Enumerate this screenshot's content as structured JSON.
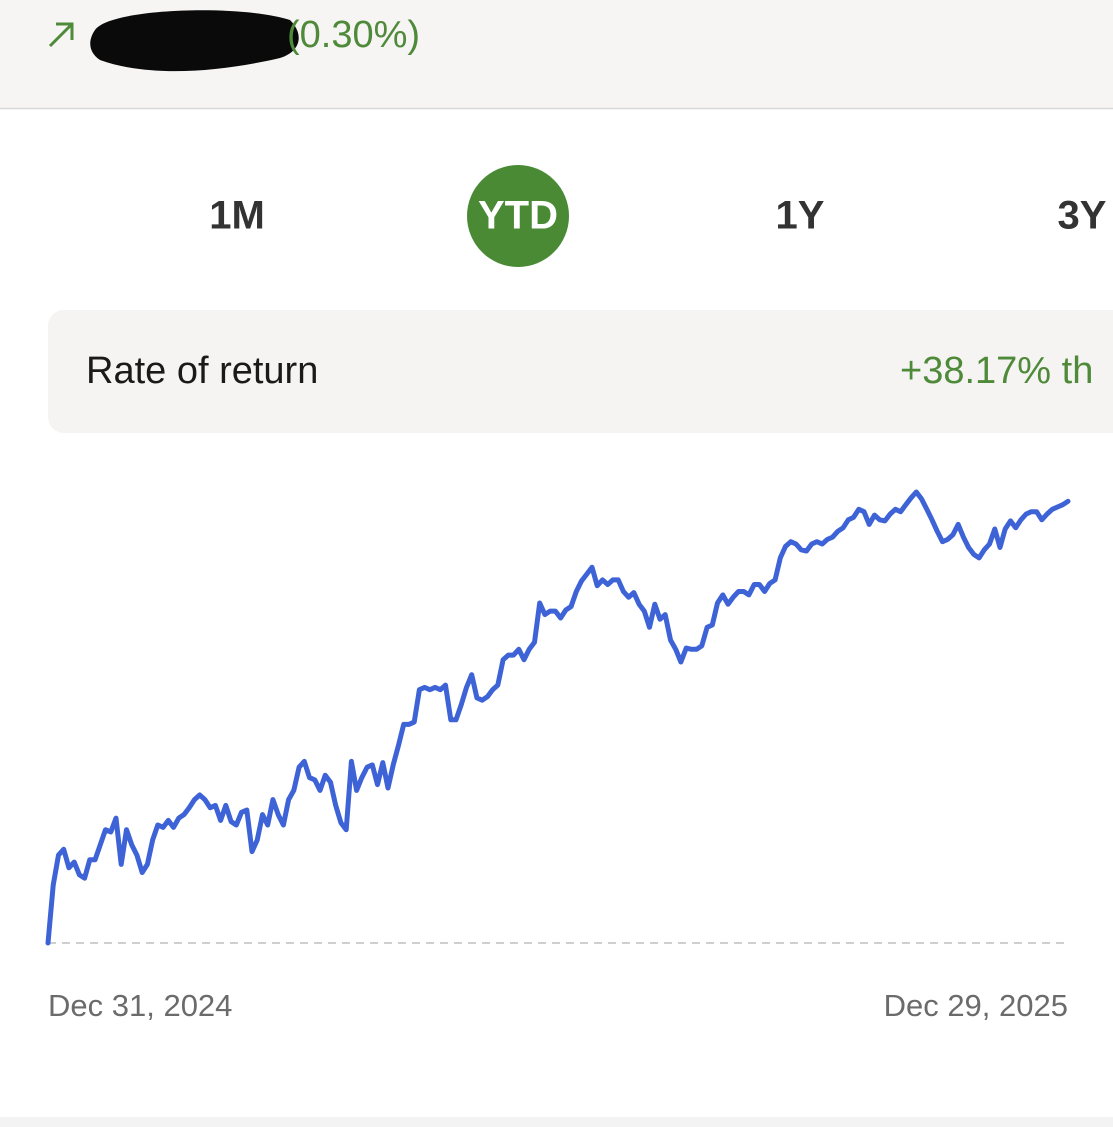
{
  "header": {
    "change_percent": "(0.30%)"
  },
  "tabs": [
    "1M",
    "YTD",
    "1Y",
    "3Y"
  ],
  "selected_tab": "YTD",
  "rate_of_return": {
    "label": "Rate of return",
    "value": "+38.17% th"
  },
  "chart_data": {
    "type": "line",
    "categories": [
      "Dec 31, 2024",
      null,
      null,
      null,
      null,
      null,
      null,
      null,
      null,
      null,
      null,
      null,
      null,
      null,
      null,
      null,
      null,
      null,
      null,
      null,
      null,
      null,
      null,
      null,
      null,
      null,
      null,
      null,
      null,
      null,
      null,
      null,
      null,
      null,
      null,
      null,
      null,
      null,
      null,
      null,
      null,
      null,
      null,
      null,
      null,
      null,
      null,
      null,
      null,
      null,
      null,
      null,
      null,
      null,
      null,
      null,
      null,
      null,
      null,
      null,
      null,
      null,
      null,
      null,
      null,
      null,
      null,
      null,
      null,
      null,
      null,
      null,
      null,
      null,
      null,
      null,
      null,
      null,
      null,
      null,
      null,
      null,
      null,
      null,
      null,
      null,
      null,
      null,
      null,
      null,
      null,
      null,
      null,
      null,
      null,
      null,
      null,
      null,
      null,
      null,
      null,
      null,
      null,
      null,
      null,
      null,
      null,
      null,
      null,
      null,
      null,
      null,
      null,
      null,
      null,
      null,
      null,
      null,
      null,
      null,
      null,
      null,
      null,
      null,
      null,
      null,
      null,
      null,
      null,
      null,
      null,
      null,
      null,
      null,
      null,
      null,
      null,
      null,
      null,
      null,
      null,
      null,
      null,
      null,
      null,
      null,
      null,
      null,
      null,
      null,
      null,
      null,
      null,
      null,
      null,
      null,
      null,
      null,
      null,
      null,
      null,
      null,
      null,
      null,
      null,
      null,
      null,
      null,
      null,
      null,
      null,
      null,
      null,
      null,
      null,
      null,
      null,
      null,
      null,
      null,
      null,
      null,
      null,
      null,
      null,
      null,
      null,
      null,
      null,
      null,
      null,
      null,
      null,
      null,
      null,
      "Dec 29, 2025"
    ],
    "series": [
      {
        "color": "#3d63d6",
        "values": [
          0,
          5.0,
          7.6,
          8.1,
          6.5,
          7.0,
          5.9,
          5.6,
          7.2,
          7.2,
          8.5,
          9.8,
          9.6,
          10.8,
          6.8,
          9.8,
          8.5,
          7.6,
          6.1,
          6.8,
          8.9,
          10.2,
          10.0,
          10.6,
          10.0,
          10.8,
          11.1,
          11.7,
          12.4,
          12.8,
          12.4,
          11.7,
          11.9,
          10.6,
          11.9,
          10.5,
          10.2,
          11.3,
          11.5,
          7.9,
          8.9,
          11.1,
          10.2,
          12.4,
          11.1,
          10.2,
          12.4,
          13.2,
          15.2,
          15.7,
          14.3,
          14.1,
          13.2,
          14.5,
          13.9,
          11.9,
          10.4,
          9.8,
          15.7,
          13.2,
          14.3,
          15.2,
          15.4,
          13.7,
          15.6,
          13.4,
          15.4,
          17.1,
          18.9,
          18.9,
          19.1,
          21.9,
          22.1,
          21.9,
          22.1,
          21.9,
          22.3,
          19.3,
          19.3,
          20.6,
          22.1,
          23.2,
          21.2,
          21.0,
          21.3,
          21.9,
          22.3,
          24.5,
          24.9,
          24.9,
          25.4,
          24.5,
          25.4,
          26.0,
          29.4,
          28.4,
          28.7,
          28.7,
          28.1,
          28.8,
          29.1,
          30.4,
          31.3,
          31.9,
          32.5,
          30.9,
          31.4,
          31.0,
          31.4,
          31.4,
          30.4,
          29.9,
          30.3,
          29.3,
          28.7,
          27.3,
          29.3,
          28.0,
          28.4,
          26.2,
          25.4,
          24.3,
          25.5,
          25.4,
          25.4,
          25.7,
          27.3,
          27.5,
          29.4,
          30.1,
          29.3,
          29.9,
          30.4,
          30.4,
          30.1,
          31.0,
          31.0,
          30.4,
          31.1,
          31.4,
          33.3,
          34.3,
          34.7,
          34.5,
          34.0,
          33.9,
          34.5,
          34.7,
          34.5,
          34.9,
          35.1,
          35.6,
          35.9,
          36.6,
          36.8,
          37.5,
          37.3,
          36.2,
          37.0,
          36.6,
          36.5,
          37.1,
          37.5,
          37.3,
          37.9,
          38.5,
          39.0,
          38.4,
          37.5,
          36.6,
          35.6,
          34.7,
          34.9,
          35.3,
          36.2,
          35.1,
          34.2,
          33.6,
          33.3,
          34.0,
          34.5,
          35.8,
          34.2,
          35.8,
          36.5,
          35.9,
          36.6,
          37.1,
          37.3,
          37.3,
          36.6,
          37.1,
          37.5,
          37.7,
          37.9,
          38.2
        ]
      }
    ]
  }
}
